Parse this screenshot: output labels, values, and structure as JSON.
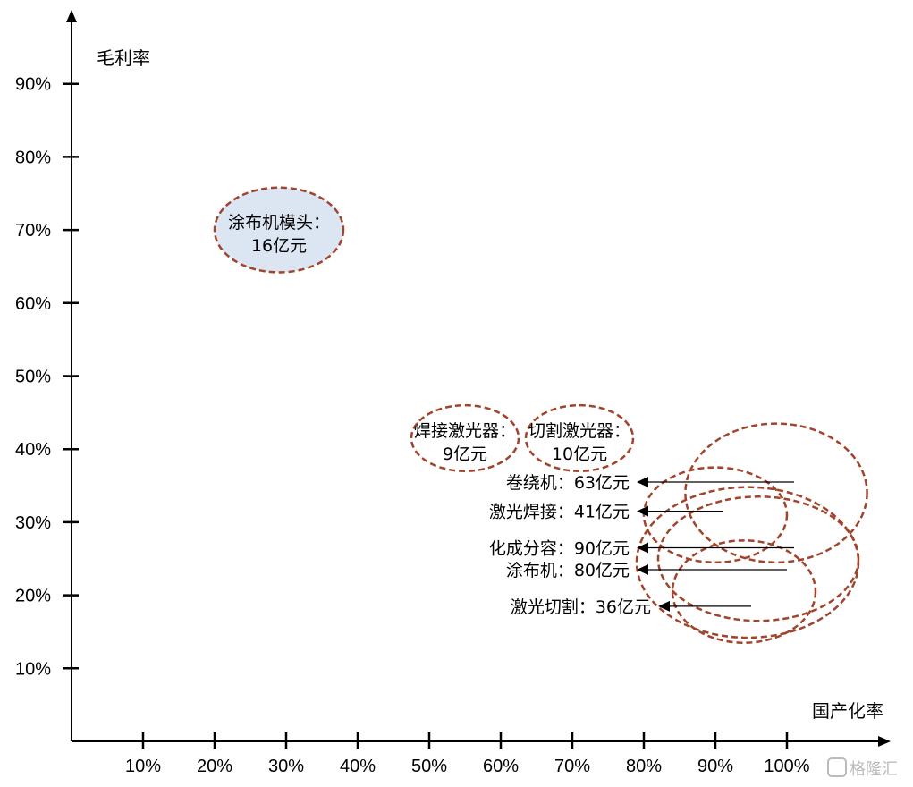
{
  "chart_data": {
    "type": "scatter",
    "xlabel": "国产化率",
    "ylabel": "毛利率",
    "x_ticks": [
      "10%",
      "20%",
      "30%",
      "40%",
      "50%",
      "60%",
      "70%",
      "80%",
      "90%",
      "100%"
    ],
    "y_ticks": [
      "10%",
      "20%",
      "30%",
      "40%",
      "50%",
      "60%",
      "70%",
      "80%",
      "90%"
    ],
    "xlim": [
      0,
      100
    ],
    "ylim": [
      0,
      100
    ],
    "colors": {
      "outline": "#a0442c",
      "fill_highlight": "#dce6f2",
      "axis": "#000000"
    },
    "points": [
      {
        "name": "涂布机模头：",
        "value_label": "16亿元",
        "x": 29,
        "y": 70,
        "rx": 9,
        "ry": 5.8,
        "filled": true,
        "labeled_inside": true
      },
      {
        "name": "焊接激光器：",
        "value_label": "9亿元",
        "x": 55,
        "y": 41.5,
        "rx": 7.5,
        "ry": 4.5,
        "filled": false,
        "labeled_inside": true
      },
      {
        "name": "切割激光器：",
        "value_label": "10亿元",
        "x": 71,
        "y": 41.5,
        "rx": 7.5,
        "ry": 4.5,
        "filled": false,
        "labeled_inside": true
      },
      {
        "name": "卷绕机：",
        "value_label": "63亿元",
        "x": 98.5,
        "y": 34,
        "rx": 12.7,
        "ry": 9.5,
        "filled": false,
        "labeled_inside": false
      },
      {
        "name": "激光焊接：",
        "value_label": "41亿元",
        "x": 90,
        "y": 31,
        "rx": 10,
        "ry": 6.5,
        "filled": false,
        "labeled_inside": false
      },
      {
        "name": "化成分容：",
        "value_label": "90亿元",
        "x": 94.5,
        "y": 24.5,
        "rx": 15.5,
        "ry": 10.3,
        "filled": false,
        "labeled_inside": false
      },
      {
        "name": "涂布机：",
        "value_label": "80亿元",
        "x": 96,
        "y": 25,
        "rx": 14,
        "ry": 8.5,
        "filled": false,
        "labeled_inside": false
      },
      {
        "name": "激光切割：",
        "value_label": "36亿元",
        "x": 94,
        "y": 20.5,
        "rx": 10,
        "ry": 7,
        "filled": false,
        "labeled_inside": false
      }
    ],
    "annotations": [
      {
        "text": "卷绕机：63亿元",
        "arrow_from_x": 101,
        "arrow_to_x": 79,
        "y": 35.5
      },
      {
        "text": "激光焊接：41亿元",
        "arrow_from_x": 91,
        "arrow_to_x": 79,
        "y": 31.5
      },
      {
        "text": "化成分容：90亿元",
        "arrow_from_x": 101,
        "arrow_to_x": 79,
        "y": 26.5
      },
      {
        "text": "涂布机：80亿元",
        "arrow_from_x": 100,
        "arrow_to_x": 79,
        "y": 23.5
      },
      {
        "text": "激光切割：36亿元",
        "arrow_from_x": 95,
        "arrow_to_x": 82,
        "y": 18.5
      }
    ]
  },
  "watermark": "格隆汇"
}
